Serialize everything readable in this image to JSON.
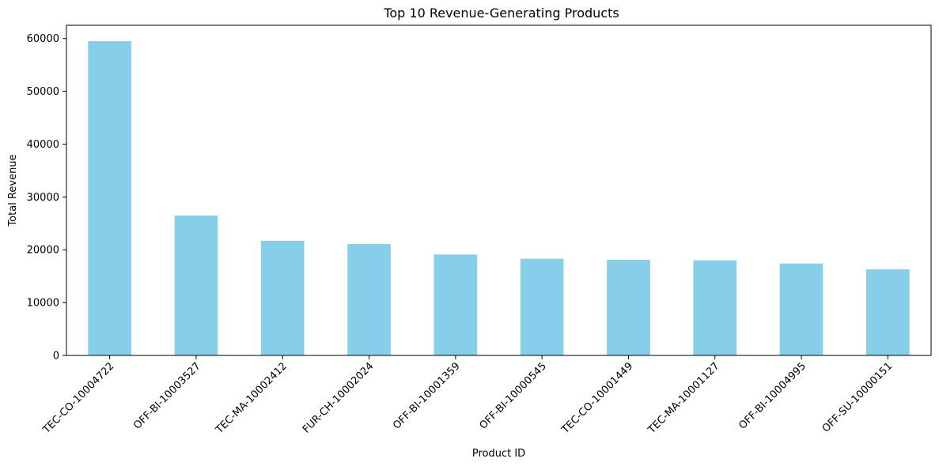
{
  "chart_data": {
    "type": "bar",
    "title": "Top 10 Revenue-Generating Products",
    "xlabel": "Product ID",
    "ylabel": "Total Revenue",
    "categories": [
      "TEC-CO-10004722",
      "OFF-BI-10003527",
      "TEC-MA-10002412",
      "FUR-CH-10002024",
      "OFF-BI-10001359",
      "OFF-BI-10000545",
      "TEC-CO-10001449",
      "TEC-MA-10001127",
      "OFF-BI-10004995",
      "OFF-SU-10000151"
    ],
    "values": [
      59500,
      26500,
      21700,
      21100,
      19100,
      18300,
      18100,
      18000,
      17400,
      16300
    ],
    "ylim": [
      0,
      62500
    ],
    "yticks": [
      0,
      10000,
      20000,
      30000,
      40000,
      50000,
      60000
    ],
    "ytick_labels": [
      "0",
      "10000",
      "20000",
      "30000",
      "40000",
      "50000",
      "60000"
    ],
    "grid": false,
    "legend": "none",
    "colors": {
      "bar": "#87ceeb",
      "axis": "#000000",
      "background": "#ffffff"
    }
  }
}
